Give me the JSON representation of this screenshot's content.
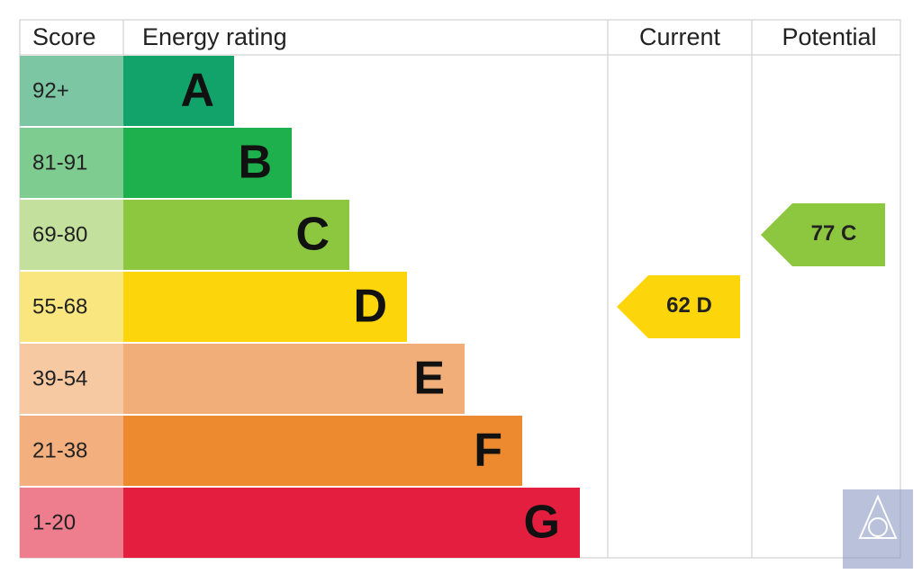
{
  "header": {
    "score": "Score",
    "rating": "Energy rating",
    "current": "Current",
    "potential": "Potential"
  },
  "bands": [
    {
      "score": "92+",
      "letter": "A",
      "color": "#12a36b",
      "score_color": "#7cc6a4"
    },
    {
      "score": "81-91",
      "letter": "B",
      "color": "#1db04c",
      "score_color": "#7fcc90"
    },
    {
      "score": "69-80",
      "letter": "C",
      "color": "#8dc63f",
      "score_color": "#c3e09c"
    },
    {
      "score": "55-68",
      "letter": "D",
      "color": "#fcd50a",
      "score_color": "#f9e67e"
    },
    {
      "score": "39-54",
      "letter": "E",
      "color": "#f1ae78",
      "score_color": "#f6c9a2"
    },
    {
      "score": "21-38",
      "letter": "F",
      "color": "#ed8a30",
      "score_color": "#f3b07e"
    },
    {
      "score": "1-20",
      "letter": "G",
      "color": "#e41e3f",
      "score_color": "#ee7d8e"
    }
  ],
  "current": {
    "score": 62,
    "rating": "D"
  },
  "potential": {
    "score": 77,
    "rating": "C"
  }
}
